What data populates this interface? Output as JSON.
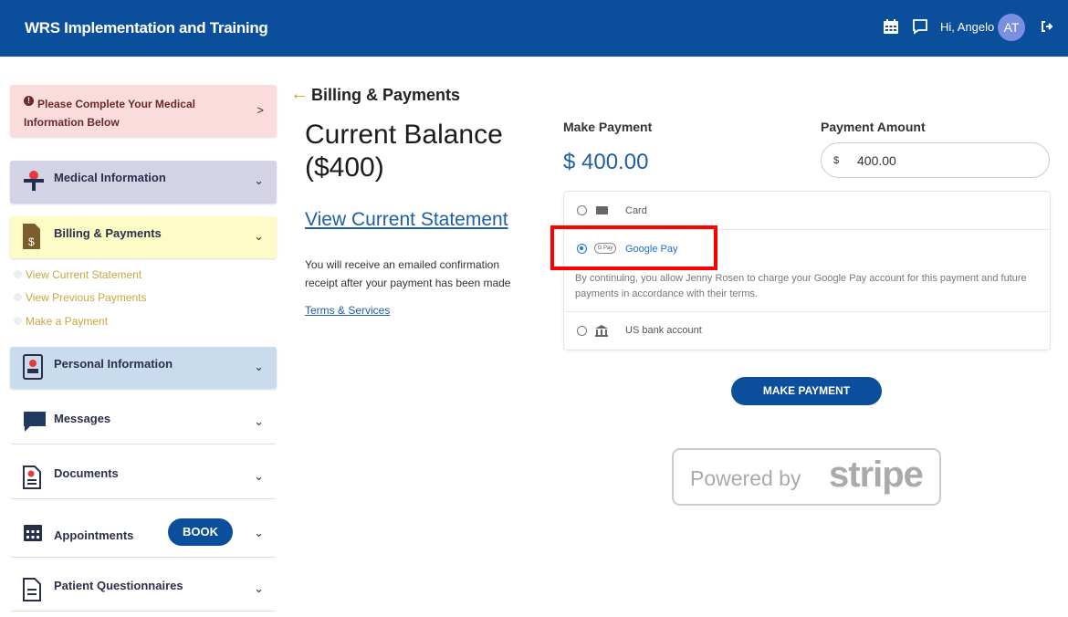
{
  "header": {
    "title": "WRS Implementation and Training",
    "greeting": "Hi, Angelo",
    "avatar_initials": "AT",
    "color": "#0b4f9c"
  },
  "sidebar": {
    "alert": "Please Complete Your Medical Information Below",
    "items": [
      {
        "label": "Medical Information",
        "icon": "medical-icon"
      },
      {
        "label": "Billing & Payments",
        "icon": "invoice-dollar-icon"
      },
      {
        "label": "Personal Information",
        "icon": "contact-book-icon"
      },
      {
        "label": "Messages",
        "icon": "message-icon"
      },
      {
        "label": "Documents",
        "icon": "document-icon"
      },
      {
        "label": "Appointments",
        "icon": "calendar-icon",
        "button": "BOOK"
      },
      {
        "label": "Patient Questionnaires",
        "icon": "questionnaire-icon"
      }
    ],
    "billing_links": [
      "View Current Statement",
      "View Previous Payments",
      "Make a Payment"
    ]
  },
  "main": {
    "back_title": "Billing & Payments",
    "balance_title": "Current Balance ($400)",
    "statement_link": "View Current Statement",
    "receipt_note": "You will receive an emailed confirmation receipt after your payment has been made",
    "terms_link": "Terms & Services",
    "make_payment_label": "Make Payment",
    "make_payment_amount": "$ 400.00",
    "payment_amount_label": "Payment Amount",
    "amount_prefix": "$",
    "amount_value": "400.00",
    "methods": [
      {
        "label": "Card",
        "selected": false
      },
      {
        "label": "Google Pay",
        "badge": "G Pay",
        "selected": true
      },
      {
        "label": "US bank account",
        "selected": false
      }
    ],
    "gpay_note": "By continuing, you allow Jenny Rosen to charge your Google Pay account for this payment and future payments in accordance with their terms.",
    "submit": "MAKE PAYMENT",
    "powered_by": "Powered by",
    "stripe": "stripe"
  }
}
